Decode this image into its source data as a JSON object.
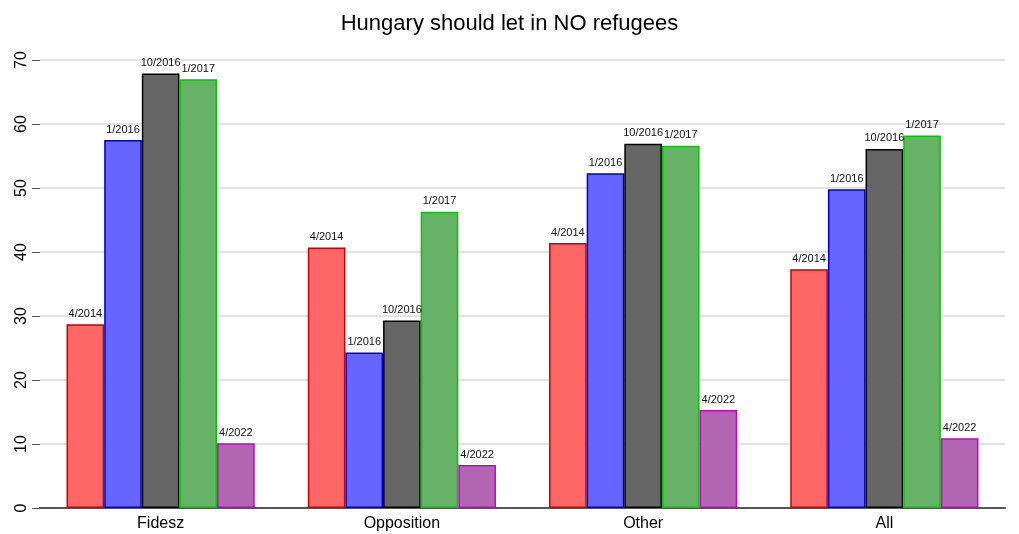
{
  "chart_data": {
    "type": "bar",
    "title": "Hungary should let in NO refugees",
    "categories": [
      "Fidesz",
      "Opposition",
      "Other",
      "All"
    ],
    "series": [
      {
        "name": "4/2014",
        "color": "#ff6666",
        "values": [
          28.7,
          40.7,
          41.4,
          37.3
        ]
      },
      {
        "name": "1/2016",
        "color": "#6666ff",
        "values": [
          57.5,
          24.3,
          52.3,
          49.8
        ]
      },
      {
        "name": "10/2016",
        "color": "#666666",
        "values": [
          67.9,
          29.3,
          56.9,
          56.1
        ]
      },
      {
        "name": "1/2017",
        "color": "#66b266",
        "values": [
          67.0,
          46.3,
          56.6,
          58.2
        ]
      },
      {
        "name": "4/2022",
        "color": "#b266b2",
        "values": [
          10.1,
          6.7,
          15.3,
          10.9
        ]
      }
    ],
    "ylim": [
      0,
      70
    ],
    "yticks": [
      0,
      10,
      20,
      30,
      40,
      50,
      60,
      70
    ],
    "grid": "y",
    "legend": false
  }
}
